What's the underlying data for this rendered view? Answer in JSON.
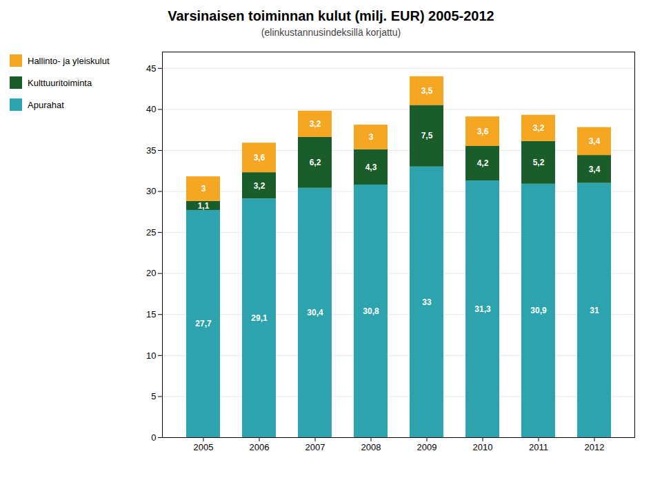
{
  "chart_data": {
    "type": "bar",
    "stacked": true,
    "title": "Varsinaisen toiminnan kulut (milj. EUR) 2005-2012",
    "subtitle": "(elinkustannusindeksillä korjattu)",
    "categories": [
      "2005",
      "2006",
      "2007",
      "2008",
      "2009",
      "2010",
      "2011",
      "2012"
    ],
    "series": [
      {
        "name": "Apurahat",
        "color": "#2DA4AD",
        "values": [
          27.7,
          29.1,
          30.4,
          30.8,
          33.0,
          31.3,
          30.9,
          31.0
        ],
        "value_labels": [
          "27,7",
          "29,1",
          "30,4",
          "30,8",
          "33",
          "31,3",
          "30,9",
          "31"
        ]
      },
      {
        "name": "Kulttuuritoiminta",
        "color": "#1A5C2A",
        "values": [
          1.1,
          3.2,
          6.2,
          4.3,
          7.5,
          4.2,
          5.2,
          3.4
        ],
        "value_labels": [
          "1,1",
          "3,2",
          "6,2",
          "4,3",
          "7,5",
          "4,2",
          "5,2",
          "3,4"
        ]
      },
      {
        "name": "Hallinto- ja yleiskulut",
        "color": "#F5A623",
        "values": [
          3.0,
          3.6,
          3.2,
          3.0,
          3.5,
          3.6,
          3.2,
          3.4
        ],
        "value_labels": [
          "3",
          "3,6",
          "3,2",
          "3",
          "3,5",
          "3,6",
          "3,2",
          "3,4"
        ]
      }
    ],
    "ylim": [
      0,
      47
    ],
    "yticks": [
      0,
      5,
      10,
      15,
      20,
      25,
      30,
      35,
      40,
      45
    ],
    "grid": true,
    "legend": "upper left",
    "data_labels": true
  }
}
